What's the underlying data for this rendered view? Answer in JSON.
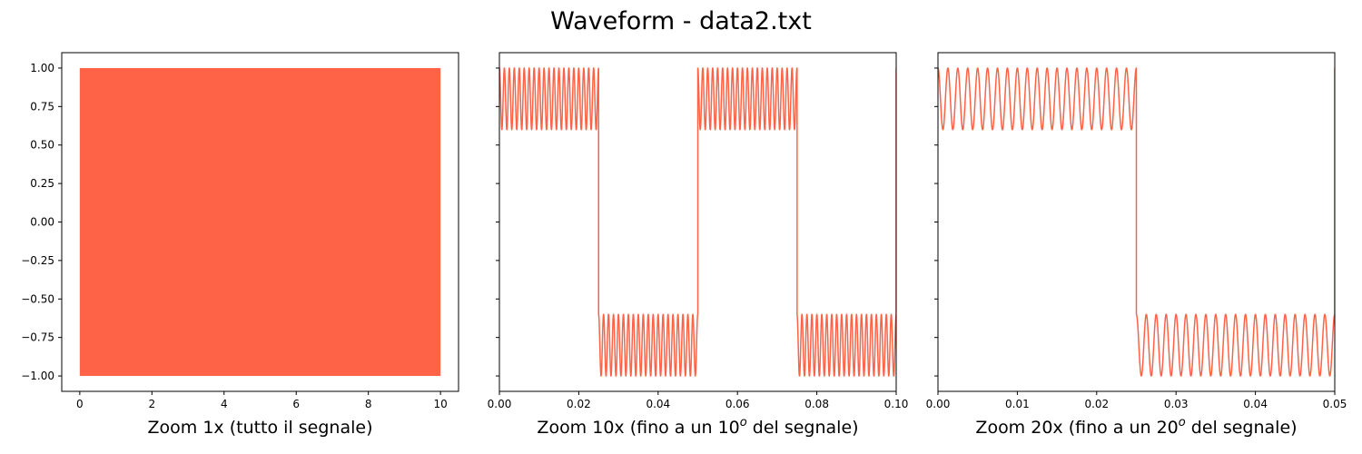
{
  "title": "Waveform - data2.txt",
  "line_color": "#ff6347",
  "chart_data": [
    {
      "type": "line",
      "xlabel": "Zoom 1x (tutto il segnale)",
      "xlim": [
        -0.5,
        10.5
      ],
      "ylim": [
        -1.1,
        1.1
      ],
      "xticks": [
        0,
        2,
        4,
        6,
        8,
        10
      ],
      "xtick_labels": [
        "0",
        "2",
        "4",
        "6",
        "8",
        "10"
      ],
      "yticks": [
        -1.0,
        -0.75,
        -0.5,
        -0.25,
        0.0,
        0.25,
        0.5,
        0.75,
        1.0
      ],
      "ytick_labels": [
        "−1.00",
        "−0.75",
        "−0.50",
        "−0.25",
        "0.00",
        "0.25",
        "0.50",
        "0.75",
        "1.00"
      ],
      "series": [
        {
          "signal": "square wave plus ripple",
          "x_range": [
            0,
            10
          ],
          "square_period": 0.05,
          "square_levels": [
            0.8,
            -0.8
          ],
          "ripple_amplitude": 0.2,
          "ripple_cycles_per_half_period": 20,
          "peak_values": [
            1.0,
            -1.0
          ]
        }
      ],
      "grid": false,
      "legend": false
    },
    {
      "type": "line",
      "xlabel": "Zoom 10x (fino a un 10",
      "xlabel_sup": "o",
      "xlabel_tail": " del segnale)",
      "xlim": [
        0,
        0.1
      ],
      "ylim": [
        -1.1,
        1.1
      ],
      "xticks": [
        0,
        0.02,
        0.04,
        0.06,
        0.08,
        0.1
      ],
      "xtick_labels": [
        "0.00",
        "0.02",
        "0.04",
        "0.06",
        "0.08",
        "0.10"
      ],
      "yticks": [
        -1.0,
        -0.75,
        -0.5,
        -0.25,
        0.0,
        0.25,
        0.5,
        0.75,
        1.0
      ],
      "series": [
        {
          "signal": "square wave plus ripple",
          "x_range": [
            0,
            0.1
          ],
          "square_period": 0.05,
          "square_levels": [
            0.8,
            -0.8
          ],
          "ripple_amplitude": 0.2,
          "ripple_cycles_per_half_period": 20,
          "edges": [
            0.025,
            0.05,
            0.075,
            0.1
          ],
          "peak_values": [
            1.0,
            -1.0
          ]
        }
      ],
      "grid": false,
      "legend": false
    },
    {
      "type": "line",
      "xlabel": "Zoom 20x (fino a un 20",
      "xlabel_sup": "o",
      "xlabel_tail": " del segnale)",
      "xlim": [
        0,
        0.05
      ],
      "ylim": [
        -1.1,
        1.1
      ],
      "xticks": [
        0,
        0.01,
        0.02,
        0.03,
        0.04,
        0.05
      ],
      "xtick_labels": [
        "0.00",
        "0.01",
        "0.02",
        "0.03",
        "0.04",
        "0.05"
      ],
      "yticks": [
        -1.0,
        -0.75,
        -0.5,
        -0.25,
        0.0,
        0.25,
        0.5,
        0.75,
        1.0
      ],
      "series": [
        {
          "signal": "square wave plus ripple",
          "x_range": [
            0,
            0.05
          ],
          "square_period": 0.05,
          "square_levels": [
            0.8,
            -0.8
          ],
          "ripple_amplitude": 0.2,
          "ripple_cycles_per_half_period": 20,
          "edges": [
            0.025,
            0.05
          ],
          "peak_values": [
            1.0,
            -1.0
          ]
        }
      ],
      "grid": false,
      "legend": false
    }
  ]
}
